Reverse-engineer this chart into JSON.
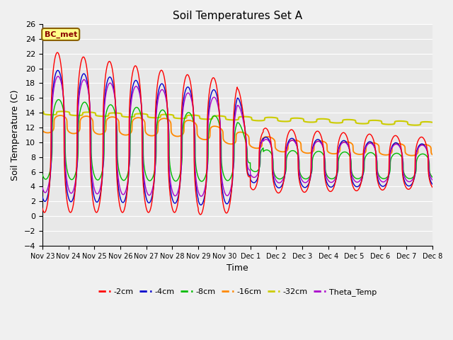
{
  "title": "Soil Temperatures Set A",
  "xlabel": "Time",
  "ylabel": "Soil Temperature (C)",
  "ylim": [
    -4,
    26
  ],
  "plot_bg": "#e8e8e8",
  "fig_bg": "#f0f0f0",
  "series_colors": {
    "-2cm": "#ff0000",
    "-4cm": "#0000cc",
    "-8cm": "#00bb00",
    "-16cm": "#ff8800",
    "-32cm": "#cccc00",
    "Theta_Temp": "#aa00cc"
  },
  "xtick_labels": [
    "Nov 23",
    "Nov 24",
    "Nov 25",
    "Nov 26",
    "Nov 27",
    "Nov 28",
    "Nov 29",
    "Nov 30",
    "Dec 1",
    "Dec 2",
    "Dec 3",
    "Dec 4",
    "Dec 5",
    "Dec 6",
    "Dec 7",
    "Dec 8"
  ],
  "ytick_values": [
    -4,
    -2,
    0,
    2,
    4,
    6,
    8,
    10,
    12,
    14,
    16,
    18,
    20,
    22,
    24,
    26
  ],
  "bc_met_label": "BC_met",
  "legend_labels": [
    "-2cm",
    "-4cm",
    "-8cm",
    "-16cm",
    "-32cm",
    "Theta_Temp"
  ]
}
